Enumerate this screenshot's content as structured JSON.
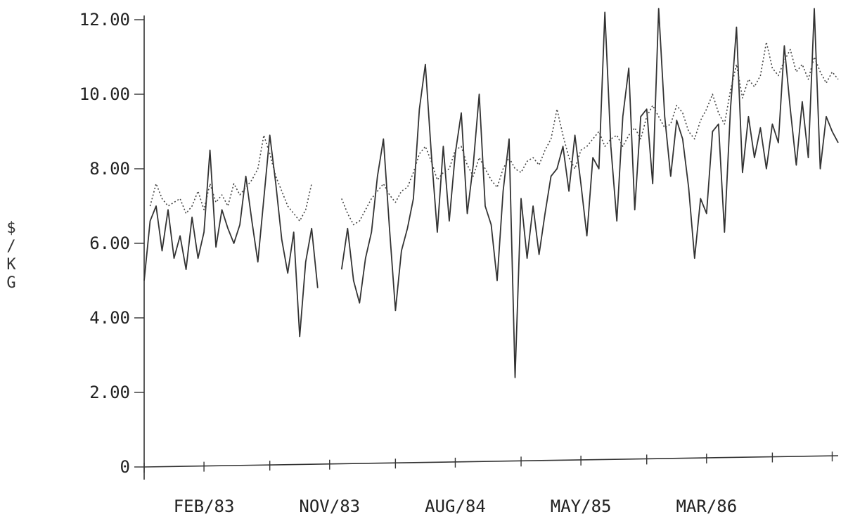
{
  "chart_data": {
    "type": "line",
    "ylabel": [
      "$",
      "/",
      "K",
      "G"
    ],
    "ylim": [
      0,
      12
    ],
    "yticks": [
      "0",
      "2.00",
      "4.00",
      "6.00",
      "8.00",
      "10.00",
      "12.00"
    ],
    "xticks": [
      "FEB/83",
      "NOV/83",
      "AUG/84",
      "MAY/85",
      "MAR/86"
    ],
    "series": [
      {
        "style": "solid",
        "segments": [
          [
            [
              0,
              5.0
            ],
            [
              1,
              6.6
            ],
            [
              2,
              7.0
            ],
            [
              3,
              5.8
            ],
            [
              4,
              6.9
            ],
            [
              5,
              5.6
            ],
            [
              6,
              6.2
            ],
            [
              7,
              5.3
            ],
            [
              8,
              6.7
            ],
            [
              9,
              5.6
            ],
            [
              10,
              6.3
            ],
            [
              11,
              8.5
            ],
            [
              12,
              5.9
            ],
            [
              13,
              6.9
            ],
            [
              14,
              6.4
            ],
            [
              15,
              6.0
            ],
            [
              16,
              6.5
            ],
            [
              17,
              7.8
            ],
            [
              18,
              6.6
            ],
            [
              19,
              5.5
            ],
            [
              20,
              7.2
            ],
            [
              21,
              8.9
            ],
            [
              22,
              7.6
            ],
            [
              23,
              6.1
            ],
            [
              24,
              5.2
            ],
            [
              25,
              6.3
            ],
            [
              26,
              3.5
            ],
            [
              27,
              5.5
            ],
            [
              28,
              6.4
            ],
            [
              29,
              4.8
            ]
          ],
          [
            [
              33,
              5.3
            ],
            [
              34,
              6.4
            ],
            [
              35,
              5.0
            ],
            [
              36,
              4.4
            ],
            [
              37,
              5.6
            ],
            [
              38,
              6.3
            ],
            [
              39,
              7.8
            ],
            [
              40,
              8.8
            ],
            [
              41,
              6.4
            ],
            [
              42,
              4.2
            ],
            [
              43,
              5.8
            ],
            [
              44,
              6.4
            ],
            [
              45,
              7.2
            ],
            [
              46,
              9.6
            ],
            [
              47,
              10.8
            ],
            [
              48,
              8.4
            ],
            [
              49,
              6.3
            ],
            [
              50,
              8.6
            ],
            [
              51,
              6.6
            ],
            [
              52,
              8.4
            ],
            [
              53,
              9.5
            ],
            [
              54,
              6.8
            ],
            [
              55,
              8.1
            ],
            [
              56,
              10.0
            ],
            [
              57,
              7.0
            ],
            [
              58,
              6.5
            ],
            [
              59,
              5.0
            ],
            [
              60,
              7.4
            ],
            [
              61,
              8.8
            ],
            [
              62,
              2.4
            ],
            [
              63,
              7.2
            ],
            [
              64,
              5.6
            ],
            [
              65,
              7.0
            ],
            [
              66,
              5.7
            ],
            [
              67,
              6.8
            ],
            [
              68,
              7.8
            ],
            [
              69,
              8.0
            ],
            [
              70,
              8.6
            ],
            [
              71,
              7.4
            ],
            [
              72,
              8.9
            ],
            [
              73,
              7.6
            ],
            [
              74,
              6.2
            ],
            [
              75,
              8.3
            ],
            [
              76,
              8.0
            ],
            [
              77,
              12.2
            ],
            [
              78,
              8.6
            ],
            [
              79,
              6.6
            ],
            [
              80,
              9.4
            ],
            [
              81,
              10.7
            ],
            [
              82,
              6.9
            ],
            [
              83,
              9.4
            ],
            [
              84,
              9.6
            ],
            [
              85,
              7.6
            ],
            [
              86,
              12.3
            ],
            [
              87,
              9.4
            ],
            [
              88,
              7.8
            ],
            [
              89,
              9.3
            ],
            [
              90,
              8.8
            ],
            [
              91,
              7.5
            ],
            [
              92,
              5.6
            ],
            [
              93,
              7.2
            ],
            [
              94,
              6.8
            ],
            [
              95,
              9.0
            ],
            [
              96,
              9.2
            ],
            [
              97,
              6.3
            ],
            [
              98,
              9.6
            ],
            [
              99,
              11.8
            ],
            [
              100,
              7.9
            ],
            [
              101,
              9.4
            ],
            [
              102,
              8.3
            ],
            [
              103,
              9.1
            ],
            [
              104,
              8.0
            ],
            [
              105,
              9.2
            ],
            [
              106,
              8.7
            ],
            [
              107,
              11.3
            ],
            [
              108,
              9.6
            ],
            [
              109,
              8.1
            ],
            [
              110,
              9.8
            ],
            [
              111,
              8.3
            ],
            [
              112,
              12.3
            ],
            [
              113,
              8.0
            ],
            [
              114,
              9.4
            ],
            [
              115,
              9.0
            ],
            [
              116,
              8.7
            ]
          ]
        ]
      },
      {
        "style": "dotted",
        "segments": [
          [
            [
              1,
              7.0
            ],
            [
              2,
              7.6
            ],
            [
              3,
              7.2
            ],
            [
              4,
              7.0
            ],
            [
              5,
              7.1
            ],
            [
              6,
              7.2
            ],
            [
              7,
              6.8
            ],
            [
              8,
              7.0
            ],
            [
              9,
              7.4
            ],
            [
              10,
              6.9
            ],
            [
              11,
              7.6
            ],
            [
              12,
              7.1
            ],
            [
              13,
              7.3
            ],
            [
              14,
              7.0
            ],
            [
              15,
              7.6
            ],
            [
              16,
              7.3
            ],
            [
              17,
              7.5
            ],
            [
              18,
              7.7
            ],
            [
              19,
              8.0
            ],
            [
              20,
              8.9
            ],
            [
              21,
              8.4
            ],
            [
              22,
              7.8
            ],
            [
              23,
              7.4
            ],
            [
              24,
              7.0
            ],
            [
              25,
              6.8
            ],
            [
              26,
              6.6
            ],
            [
              27,
              6.9
            ],
            [
              28,
              7.6
            ]
          ],
          [
            [
              33,
              7.2
            ],
            [
              34,
              6.8
            ],
            [
              35,
              6.5
            ],
            [
              36,
              6.6
            ],
            [
              37,
              6.9
            ],
            [
              38,
              7.2
            ],
            [
              39,
              7.4
            ],
            [
              40,
              7.6
            ],
            [
              41,
              7.3
            ],
            [
              42,
              7.1
            ],
            [
              43,
              7.4
            ],
            [
              44,
              7.5
            ],
            [
              45,
              7.9
            ],
            [
              46,
              8.4
            ],
            [
              47,
              8.6
            ],
            [
              48,
              8.2
            ],
            [
              49,
              7.7
            ],
            [
              50,
              7.9
            ],
            [
              51,
              8.0
            ],
            [
              52,
              8.5
            ],
            [
              53,
              8.6
            ],
            [
              54,
              8.1
            ],
            [
              55,
              7.8
            ],
            [
              56,
              8.3
            ],
            [
              57,
              8.0
            ],
            [
              58,
              7.7
            ],
            [
              59,
              7.5
            ],
            [
              60,
              8.0
            ],
            [
              61,
              8.3
            ],
            [
              62,
              8.0
            ],
            [
              63,
              7.9
            ],
            [
              64,
              8.2
            ],
            [
              65,
              8.3
            ],
            [
              66,
              8.1
            ],
            [
              67,
              8.5
            ],
            [
              68,
              8.8
            ],
            [
              69,
              9.6
            ],
            [
              70,
              8.9
            ],
            [
              71,
              8.3
            ],
            [
              72,
              8.0
            ],
            [
              73,
              8.5
            ],
            [
              74,
              8.6
            ],
            [
              75,
              8.8
            ],
            [
              76,
              9.0
            ],
            [
              77,
              8.6
            ],
            [
              78,
              8.8
            ],
            [
              79,
              8.9
            ],
            [
              80,
              8.6
            ],
            [
              81,
              8.9
            ],
            [
              82,
              9.1
            ],
            [
              83,
              8.8
            ],
            [
              84,
              9.4
            ],
            [
              85,
              9.7
            ],
            [
              86,
              9.4
            ],
            [
              87,
              9.1
            ],
            [
              88,
              9.2
            ],
            [
              89,
              9.7
            ],
            [
              90,
              9.5
            ],
            [
              91,
              9.0
            ],
            [
              92,
              8.8
            ],
            [
              93,
              9.3
            ],
            [
              94,
              9.6
            ],
            [
              95,
              10.0
            ],
            [
              96,
              9.5
            ],
            [
              97,
              9.2
            ],
            [
              98,
              10.1
            ],
            [
              99,
              10.8
            ],
            [
              100,
              9.9
            ],
            [
              101,
              10.4
            ],
            [
              102,
              10.2
            ],
            [
              103,
              10.5
            ],
            [
              104,
              11.4
            ],
            [
              105,
              10.7
            ],
            [
              106,
              10.5
            ],
            [
              107,
              10.9
            ],
            [
              108,
              11.2
            ],
            [
              109,
              10.6
            ],
            [
              110,
              10.8
            ],
            [
              111,
              10.4
            ],
            [
              112,
              11.0
            ],
            [
              113,
              10.6
            ],
            [
              114,
              10.3
            ],
            [
              115,
              10.6
            ],
            [
              116,
              10.4
            ]
          ]
        ]
      }
    ],
    "grid": false
  }
}
